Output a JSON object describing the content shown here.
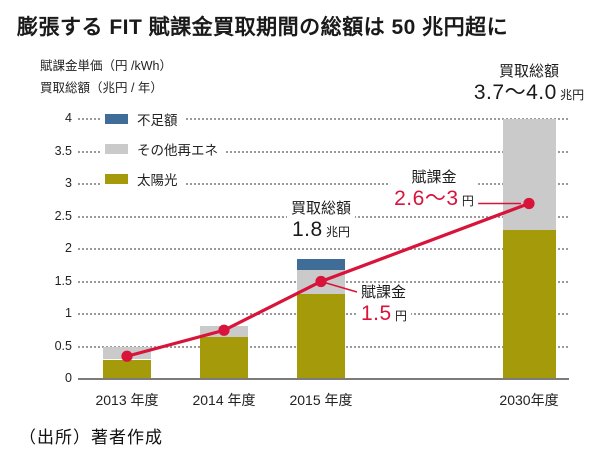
{
  "title": "膨張する FIT 賦課金買取期間の総額は 50 兆円超に",
  "axis_notes": [
    "賦課金単価（円 /kWh）",
    "買取総額（兆円 / 年）"
  ],
  "source": "（出所）著者作成",
  "colors": {
    "solar": "#a59b0a",
    "other_renewables": "#cacaca",
    "deficit": "#3f6d97",
    "levy_line": "#d8143a",
    "grid": "#9a9a9a",
    "axis": "#7c7c7c"
  },
  "legend": [
    {
      "id": "deficit",
      "label": "不足額",
      "color": "#3f6d97"
    },
    {
      "id": "other_renewables",
      "label": "その他再エネ",
      "color": "#cacaca"
    },
    {
      "id": "solar",
      "label": "太陽光",
      "color": "#a59b0a"
    }
  ],
  "chart_data": {
    "type": "bar",
    "subtype": "stacked-bars-with-line",
    "title": "膨張する FIT 賦課金買取期間の総額は 50 兆円超に",
    "ylabel": "賦課金単価（円 /kWh）／買取総額（兆円 / 年）",
    "categories": [
      "2013 年度",
      "2014 年度",
      "2015 年度",
      "2030年度"
    ],
    "series": [
      {
        "name": "太陽光",
        "type": "bar",
        "color_key": "solar",
        "values": [
          0.3,
          0.65,
          1.31,
          2.29
        ]
      },
      {
        "name": "その他再エネ",
        "type": "bar",
        "color_key": "other_renewables",
        "values": [
          0.19,
          0.17,
          0.37,
          1.71
        ]
      },
      {
        "name": "不足額",
        "type": "bar",
        "color_key": "deficit",
        "values": [
          0,
          0,
          0.17,
          0
        ]
      },
      {
        "name": "賦課金単価",
        "type": "line",
        "color_key": "levy_line",
        "values": [
          0.35,
          0.75,
          1.5,
          2.7
        ]
      }
    ],
    "bar_totals_labeled": {
      "2015": "1.8 兆円",
      "2030": "3.7～4.0 兆円"
    },
    "line_values_labeled": {
      "2015": "1.5 円",
      "2030": "2.6～3 円"
    },
    "ylim": [
      0,
      4
    ],
    "yticks": [
      0,
      0.5,
      1,
      1.5,
      2,
      2.5,
      3,
      3.5,
      4
    ],
    "ytick_labels": [
      "0",
      "0.5",
      "1",
      "1.5",
      "2",
      "2.5",
      "3",
      "3.5",
      "4"
    ],
    "grid": "dotted-horizontal",
    "legend_position": "inside-top-left"
  },
  "annotations": {
    "total_2015": {
      "label": "買取総額",
      "value": "1.8",
      "unit": "兆円"
    },
    "total_2030": {
      "label": "買取総額",
      "value": "3.7～4.0",
      "unit": "兆円"
    },
    "levy_2015": {
      "label": "賦課金",
      "value": "1.5",
      "unit": "円"
    },
    "levy_2030": {
      "label": "賦課金",
      "value": "2.6～3",
      "unit": "円"
    }
  }
}
